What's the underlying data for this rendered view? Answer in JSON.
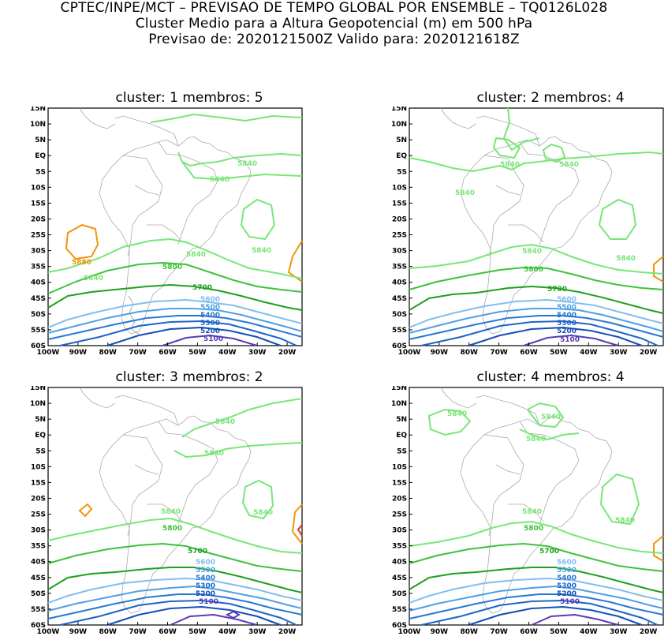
{
  "header": {
    "line1": "CPTEC/INPE/MCT – PREVISAO DE TEMPO GLOBAL POR ENSEMBLE – TQ0126L028",
    "line2": "Cluster Medio para a Altura Geopotencial (m) em 500 hPa",
    "line3": "Previsao de: 2020121500Z    Valido para: 2020121618Z"
  },
  "axes": {
    "lat_labels": [
      "15N",
      "10N",
      "5N",
      "EQ",
      "5S",
      "10S",
      "15S",
      "20S",
      "25S",
      "30S",
      "35S",
      "40S",
      "45S",
      "50S",
      "55S",
      "60S"
    ],
    "lon_labels": [
      "100W",
      "90W",
      "80W",
      "70W",
      "60W",
      "50W",
      "40W",
      "30W",
      "20W"
    ]
  },
  "contour_colors": {
    "5880": "#f0960a",
    "5840": "#78e678",
    "5800": "#3cc33c",
    "5700": "#1ea01e",
    "5600": "#82bef0",
    "5500": "#50a0e6",
    "5400": "#2878d2",
    "5300": "#1e64c8",
    "5200": "#1450b4",
    "5100": "#5a3cb4"
  },
  "panels": [
    {
      "title": "cluster: 1   membros: 5",
      "labels": {
        "5880": "5880",
        "5840a": "5840",
        "5840b": "5840",
        "5840c": "5840",
        "5840d": "5840",
        "5840e": "5840",
        "5800": "5800",
        "5700": "5700",
        "5600": "5600",
        "5500": "5500",
        "5400": "5400",
        "5300": "5300",
        "5200": "5200",
        "5100": "5100"
      }
    },
    {
      "title": "cluster: 2   membros: 4",
      "labels": {
        "5840a": "5840",
        "5840b": "5840",
        "5840c": "5840",
        "5840d": "5840",
        "5840e": "5840",
        "5800": "5800",
        "5700": "5700",
        "5600": "5600",
        "5500": "5500",
        "5400": "5400",
        "5300": "5300",
        "5200": "5200",
        "5100": "5100"
      }
    },
    {
      "title": "cluster: 3   membros: 2",
      "labels": {
        "5840a": "5840",
        "5840b": "5840",
        "5840c": "5840",
        "5840d": "5840",
        "5800": "5800",
        "5700": "5700",
        "5600": "5600",
        "5500": "5500",
        "5400": "5400",
        "5300": "5300",
        "5200": "5200",
        "5100": "5100"
      }
    },
    {
      "title": "cluster: 4   membros: 4",
      "labels": {
        "5840a": "5840",
        "5840b": "5840",
        "5840c": "5840",
        "5840d": "5840",
        "5840e": "5840",
        "5800": "5800",
        "5700": "5700",
        "5600": "5600",
        "5500": "5500",
        "5400": "5400",
        "5300": "5300",
        "5200": "5200",
        "5100": "5100"
      }
    }
  ]
}
